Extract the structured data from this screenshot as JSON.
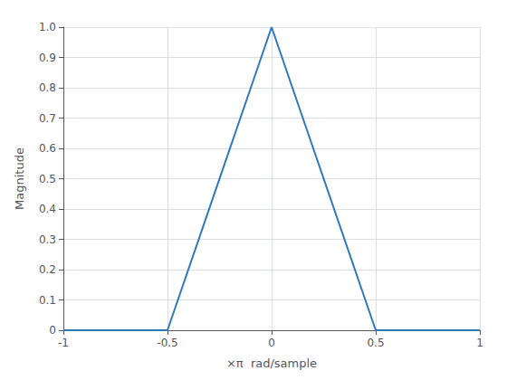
{
  "chart_data": {
    "type": "line",
    "xlabel": "×π  rad/sample",
    "ylabel": "Magnitude",
    "x": [
      -1,
      -0.5,
      0,
      0.5,
      1
    ],
    "values": [
      0,
      0,
      1,
      0,
      0
    ],
    "color": "#3078BE",
    "xlim": [
      -1,
      1
    ],
    "ylim": [
      0,
      1
    ],
    "xticks": [
      -1,
      -0.5,
      0,
      0.5,
      1
    ],
    "yticks": [
      0,
      0.1,
      0.2,
      0.3,
      0.4,
      0.5,
      0.6,
      0.7,
      0.8,
      0.9,
      {
        "value": 1.0,
        "label": "1.0"
      }
    ],
    "grid": true
  }
}
